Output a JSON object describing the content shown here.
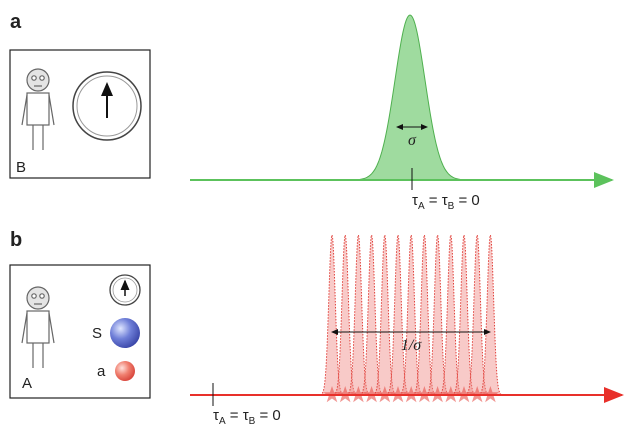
{
  "panel_a": {
    "label": "a",
    "observer": "B",
    "width_label": "σ",
    "time_label": [
      "τ",
      "A",
      " = τ",
      "B",
      " = 0"
    ]
  },
  "panel_b": {
    "label": "b",
    "observer": "A",
    "source": "S",
    "ancilla": "a",
    "width_label": "1/σ",
    "time_label": [
      "τ",
      "A",
      " = τ",
      "B",
      " = 0"
    ]
  }
}
